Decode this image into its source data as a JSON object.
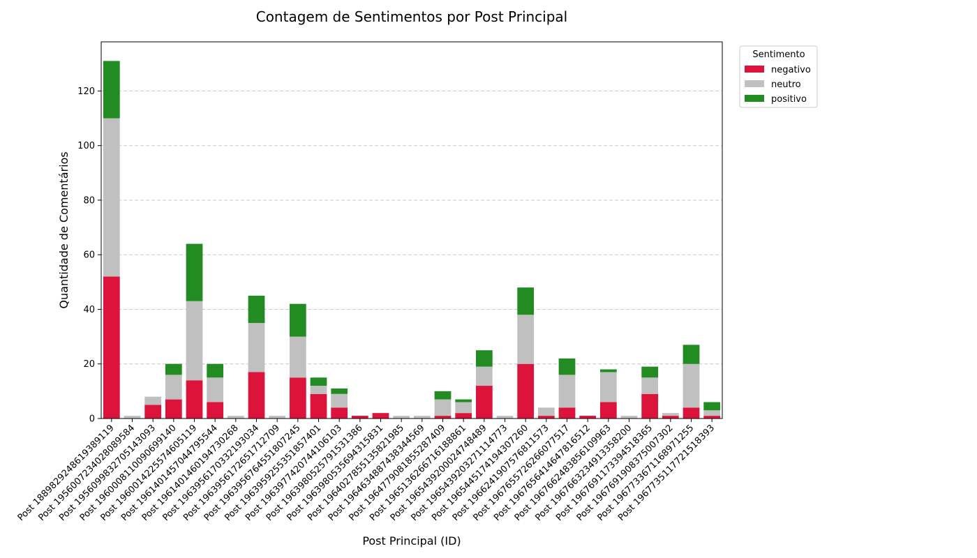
{
  "chart_data": {
    "type": "bar",
    "stacked": true,
    "title": "Contagem de Sentimentos por Post Principal",
    "xlabel": "Post Principal (ID)",
    "ylabel": "Quantidade de Comentários",
    "ylim": [
      0,
      138
    ],
    "yticks": [
      0,
      20,
      40,
      60,
      80,
      100,
      120
    ],
    "grid": "y-dashed",
    "legend": {
      "title": "Sentimento",
      "placement": "outside-top-right"
    },
    "categories": [
      "Post 1889829248619389119",
      "Post 1956007234028089584",
      "Post 1956099832705143093",
      "Post 1960008110090699140",
      "Post 1960014225574605119",
      "Post 1961401457044795544",
      "Post 1961401460194730268",
      "Post 1963956170332193034",
      "Post 1963956172651712709",
      "Post 1963956764551807245",
      "Post 1963959255351857401",
      "Post 1963977420744106103",
      "Post 1963980525791531386",
      "Post 1963980535694315831",
      "Post 1964027855135821985",
      "Post 1964634887438344569",
      "Post 1964779081855287409",
      "Post 1965136266716188861",
      "Post 1965439200024748489",
      "Post 1965439203271114773",
      "Post 1965445174194307260",
      "Post 1966241907576811573",
      "Post 1967655726266077517",
      "Post 1967656414647816512",
      "Post 1967662483856109963",
      "Post 1967663234913358200",
      "Post 1967691173394518365",
      "Post 1967691908375007302",
      "Post 1967733671168971255",
      "Post 1967735117721518393"
    ],
    "series": [
      {
        "name": "negativo",
        "color": "#dc143c",
        "values": [
          52,
          0,
          5,
          7,
          14,
          6,
          0,
          17,
          0,
          15,
          9,
          4,
          1,
          2,
          0,
          0,
          1,
          2,
          12,
          0,
          20,
          1,
          4,
          1,
          6,
          0,
          9,
          1,
          4,
          1
        ]
      },
      {
        "name": "neutro",
        "color": "#c0c0c0",
        "values": [
          58,
          1,
          3,
          9,
          29,
          9,
          1,
          18,
          1,
          15,
          3,
          5,
          0,
          0,
          1,
          1,
          6,
          4,
          7,
          1,
          18,
          3,
          12,
          0,
          11,
          1,
          6,
          1,
          16,
          2
        ]
      },
      {
        "name": "positivo",
        "color": "#228b22",
        "values": [
          21,
          0,
          0,
          4,
          21,
          5,
          0,
          10,
          0,
          12,
          3,
          2,
          0,
          0,
          0,
          0,
          3,
          1,
          6,
          0,
          10,
          0,
          6,
          0,
          1,
          0,
          4,
          0,
          7,
          3
        ]
      }
    ]
  }
}
